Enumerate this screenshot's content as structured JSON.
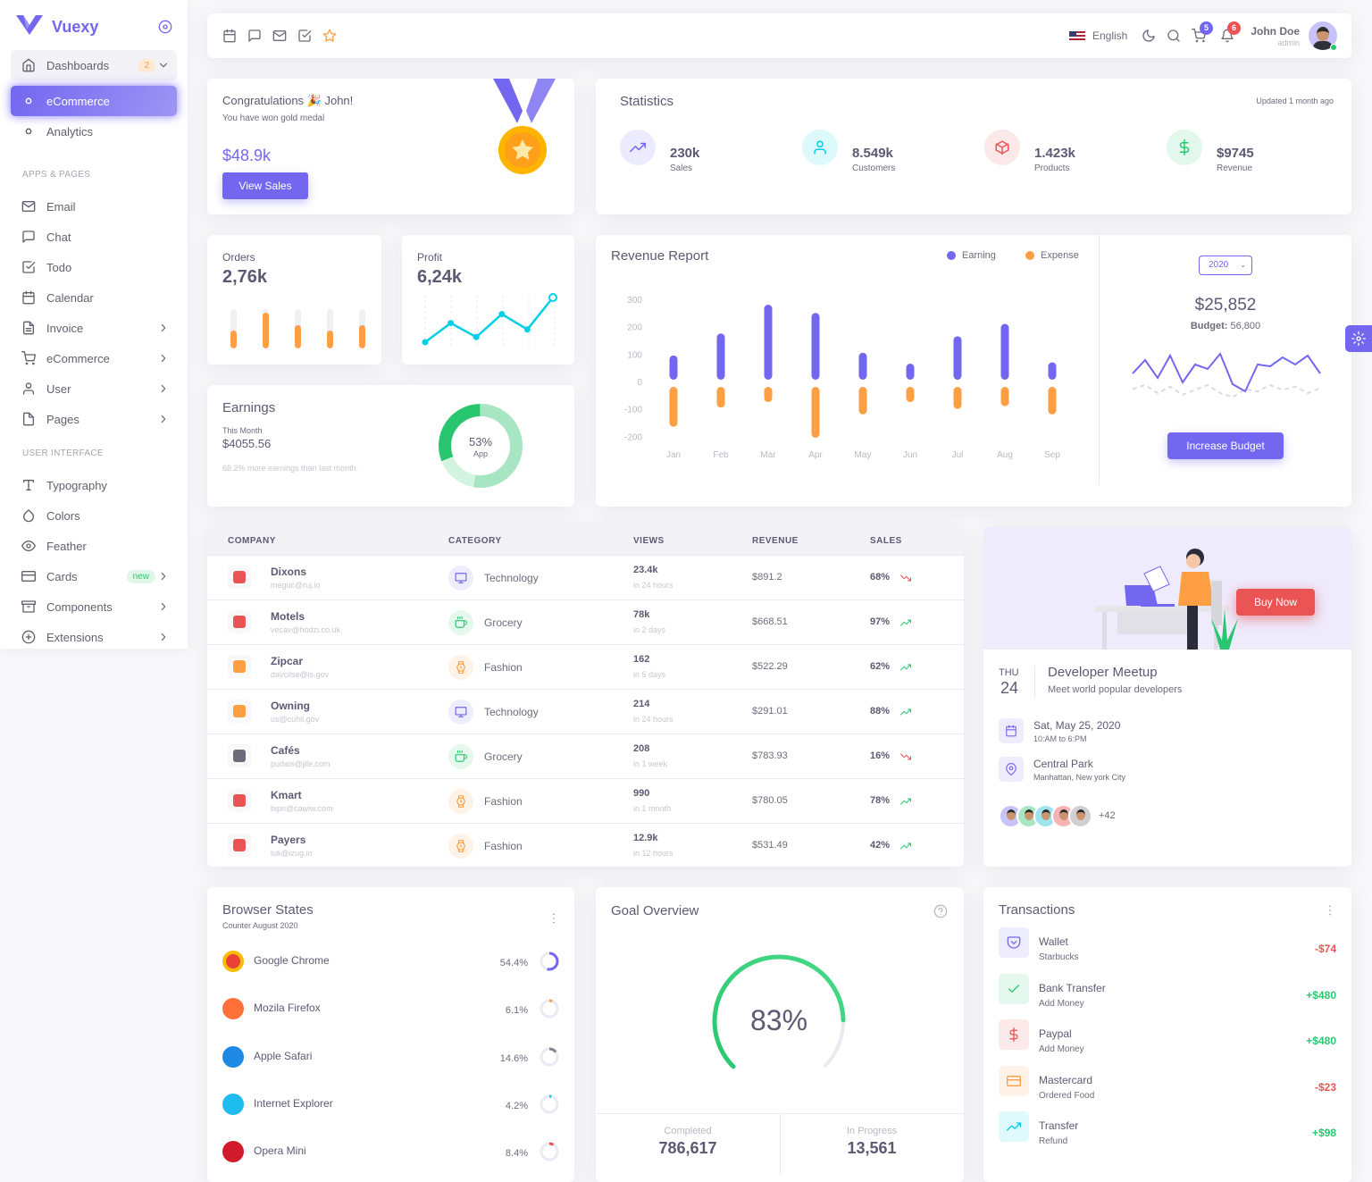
{
  "brand": {
    "name": "Vuexy",
    "primary": "#7367f0"
  },
  "sidebar": {
    "toggle_icon": "disc-icon",
    "dashboards": {
      "label": "Dashboards",
      "badge": "2",
      "icon": "home-icon"
    },
    "sub": [
      {
        "label": "eCommerce",
        "active": true
      },
      {
        "label": "Analytics",
        "active": false
      }
    ],
    "sections": [
      {
        "title": "APPS & PAGES",
        "items": [
          {
            "label": "Email",
            "icon": "mail",
            "chevron": false
          },
          {
            "label": "Chat",
            "icon": "message-square",
            "chevron": false
          },
          {
            "label": "Todo",
            "icon": "check-square",
            "chevron": false
          },
          {
            "label": "Calendar",
            "icon": "calendar",
            "chevron": false
          },
          {
            "label": "Invoice",
            "icon": "file-text",
            "chevron": true
          },
          {
            "label": "eCommerce",
            "icon": "shopping-cart",
            "chevron": true
          },
          {
            "label": "User",
            "icon": "user",
            "chevron": true
          },
          {
            "label": "Pages",
            "icon": "file",
            "chevron": true
          }
        ]
      },
      {
        "title": "USER INTERFACE",
        "items": [
          {
            "label": "Typography",
            "icon": "type",
            "chevron": false
          },
          {
            "label": "Colors",
            "icon": "droplet",
            "chevron": false
          },
          {
            "label": "Feather",
            "icon": "eye",
            "chevron": false
          },
          {
            "label": "Cards",
            "icon": "credit-card",
            "chevron": true,
            "badge": "new"
          },
          {
            "label": "Components",
            "icon": "archive",
            "chevron": true
          },
          {
            "label": "Extensions",
            "icon": "plus-circle",
            "chevron": true
          }
        ]
      }
    ]
  },
  "navbar": {
    "shortcuts": [
      "calendar",
      "message-square",
      "mail",
      "check-square",
      "star"
    ],
    "language": "English",
    "cart_count": "5",
    "notification_count": "6",
    "user": {
      "name": "John Doe",
      "role": "admin"
    }
  },
  "congrats": {
    "title": "Congratulations 🎉 John!",
    "subtitle": "You have won gold medal",
    "amount": "$48.9k",
    "button": "View Sales"
  },
  "statistics": {
    "title": "Statistics",
    "updated": "Updated 1 month ago",
    "items": [
      {
        "value": "230k",
        "label": "Sales",
        "icon": "trending-up",
        "color": "#7367f0"
      },
      {
        "value": "8.549k",
        "label": "Customers",
        "icon": "user",
        "color": "#00cfe8"
      },
      {
        "value": "1.423k",
        "label": "Products",
        "icon": "box",
        "color": "#ea5455"
      },
      {
        "value": "$9745",
        "label": "Revenue",
        "icon": "dollar-sign",
        "color": "#28c76f"
      }
    ]
  },
  "orders": {
    "label": "Orders",
    "value": "2,76k",
    "bar_levels": [
      0.45,
      0.9,
      0.6,
      0.45,
      0.6
    ],
    "color": "#ff9f43"
  },
  "profit": {
    "label": "Profit",
    "value": "6,24k",
    "points": [
      0,
      15,
      4,
      22,
      10,
      35
    ],
    "color": "#00cfe8"
  },
  "earnings": {
    "title": "Earnings",
    "period": "This Month",
    "amount": "$4055.56",
    "note": "68.2% more earnings than last month.",
    "donut": {
      "center": "53%",
      "label": "App",
      "segments": [
        53,
        16,
        31
      ],
      "colors": [
        "#a8e6c3",
        "#d4f4e2",
        "#28c76f"
      ]
    }
  },
  "chart_data": {
    "type": "bar",
    "title": "Revenue Report",
    "categories": [
      "Jan",
      "Feb",
      "Mar",
      "Apr",
      "May",
      "Jun",
      "Jul",
      "Aug",
      "Sep"
    ],
    "series": [
      {
        "name": "Earning",
        "color": "#7367f0",
        "values": [
          95,
          175,
          280,
          250,
          105,
          65,
          165,
          210,
          70
        ]
      },
      {
        "name": "Expense",
        "color": "#ff9f43",
        "values": [
          -165,
          -95,
          -75,
          -205,
          -120,
          -75,
          -100,
          -90,
          -120
        ]
      }
    ],
    "yticks": [
      "300",
      "200",
      "100",
      "0",
      "-100",
      "-200"
    ],
    "ylim": [
      -200,
      300
    ],
    "grid": false,
    "legend": "top-right"
  },
  "budget": {
    "year": "2020",
    "amount": "$25,852",
    "budget_label": "Budget:",
    "budget_value": "56,800",
    "button": "Increase Budget",
    "line": [
      40,
      55,
      35,
      60,
      30,
      50,
      45,
      62,
      28,
      20,
      50,
      48,
      58,
      50,
      60,
      40
    ],
    "dashed": [
      25,
      30,
      20,
      28,
      18,
      24,
      30,
      20,
      15,
      25,
      22,
      30,
      24,
      28,
      20,
      26
    ]
  },
  "table": {
    "headers": [
      "COMPANY",
      "CATEGORY",
      "VIEWS",
      "REVENUE",
      "SALES"
    ],
    "rows": [
      {
        "company": "Dixons",
        "email": "meguc@ruj.io",
        "logo_color": "#ea5455",
        "category": "Technology",
        "cat_icon": "monitor",
        "cat_color": "#7367f0",
        "views": "23.4k",
        "period": "in 24 hours",
        "revenue": "$891.2",
        "sales": "68%",
        "trend": "down"
      },
      {
        "company": "Motels",
        "email": "vecav@hodzi.co.uk",
        "logo_color": "#ea5455",
        "category": "Grocery",
        "cat_icon": "coffee",
        "cat_color": "#28c76f",
        "views": "78k",
        "period": "in 2 days",
        "revenue": "$668.51",
        "sales": "97%",
        "trend": "up"
      },
      {
        "company": "Zipcar",
        "email": "davcilse@is.gov",
        "logo_color": "#ff9f43",
        "category": "Fashion",
        "cat_icon": "watch",
        "cat_color": "#ff9f43",
        "views": "162",
        "period": "in 5 days",
        "revenue": "$522.29",
        "sales": "62%",
        "trend": "up"
      },
      {
        "company": "Owning",
        "email": "us@cuhil.gov",
        "logo_color": "#ff9f43",
        "category": "Technology",
        "cat_icon": "monitor",
        "cat_color": "#7367f0",
        "views": "214",
        "period": "in 24 hours",
        "revenue": "$291.01",
        "sales": "88%",
        "trend": "up"
      },
      {
        "company": "Cafés",
        "email": "pudais@jife.com",
        "logo_color": "#6e6b7b",
        "category": "Grocery",
        "cat_icon": "coffee",
        "cat_color": "#28c76f",
        "views": "208",
        "period": "in 1 week",
        "revenue": "$783.93",
        "sales": "16%",
        "trend": "down"
      },
      {
        "company": "Kmart",
        "email": "bipri@cawiw.com",
        "logo_color": "#ea5455",
        "category": "Fashion",
        "cat_icon": "watch",
        "cat_color": "#ff9f43",
        "views": "990",
        "period": "in 1 month",
        "revenue": "$780.05",
        "sales": "78%",
        "trend": "up"
      },
      {
        "company": "Payers",
        "email": "luk@izug.io",
        "logo_color": "#ea5455",
        "category": "Fashion",
        "cat_icon": "watch",
        "cat_color": "#ff9f43",
        "views": "12.9k",
        "period": "in 12 hours",
        "revenue": "$531.49",
        "sales": "42%",
        "trend": "up"
      }
    ]
  },
  "meetup": {
    "button": "Buy Now",
    "day": "THU",
    "date": "24",
    "title": "Developer Meetup",
    "subtitle": "Meet world popular developers",
    "details": [
      {
        "icon": "calendar",
        "title": "Sat, May 25, 2020",
        "sub": "10:AM to 6:PM"
      },
      {
        "icon": "map-pin",
        "title": "Central Park",
        "sub": "Manhattan, New york City"
      }
    ],
    "avatar_colors": [
      "#c7c2f7",
      "#a8e6c3",
      "#9ee4ef",
      "#f6b3b3",
      "#d0d0d0"
    ],
    "more": "+42"
  },
  "browsers": {
    "title": "Browser States",
    "subtitle": "Counter August 2020",
    "items": [
      {
        "name": "Google Chrome",
        "percent": "54.4%",
        "value": 54.4,
        "color": "#7367f0",
        "logo": "#ea4335"
      },
      {
        "name": "Mozila Firefox",
        "percent": "6.1%",
        "value": 6.1,
        "color": "#ff9f43",
        "logo": "#ff7139"
      },
      {
        "name": "Apple Safari",
        "percent": "14.6%",
        "value": 14.6,
        "color": "#82868b",
        "logo": "#1e88e5"
      },
      {
        "name": "Internet Explorer",
        "percent": "4.2%",
        "value": 4.2,
        "color": "#00cfe8",
        "logo": "#1ebbee"
      },
      {
        "name": "Opera Mini",
        "percent": "8.4%",
        "value": 8.4,
        "color": "#ea5455",
        "logo": "#d11a2a"
      }
    ]
  },
  "goal": {
    "title": "Goal Overview",
    "value": 83,
    "label": "83%",
    "completed_label": "Completed",
    "completed": "786,617",
    "progress_label": "In Progress",
    "progress": "13,561",
    "color": "#28c76f"
  },
  "transactions": {
    "title": "Transactions",
    "items": [
      {
        "name": "Wallet",
        "sub": "Starbucks",
        "amount": "-$74",
        "icon": "pocket",
        "color": "#7367f0"
      },
      {
        "name": "Bank Transfer",
        "sub": "Add Money",
        "amount": "+$480",
        "icon": "check",
        "color": "#28c76f"
      },
      {
        "name": "Paypal",
        "sub": "Add Money",
        "amount": "+$480",
        "icon": "dollar-sign",
        "color": "#ea5455"
      },
      {
        "name": "Mastercard",
        "sub": "Ordered Food",
        "amount": "-$23",
        "icon": "credit-card",
        "color": "#ff9f43"
      },
      {
        "name": "Transfer",
        "sub": "Refund",
        "amount": "+$98",
        "icon": "trending-up",
        "color": "#00cfe8"
      }
    ]
  }
}
